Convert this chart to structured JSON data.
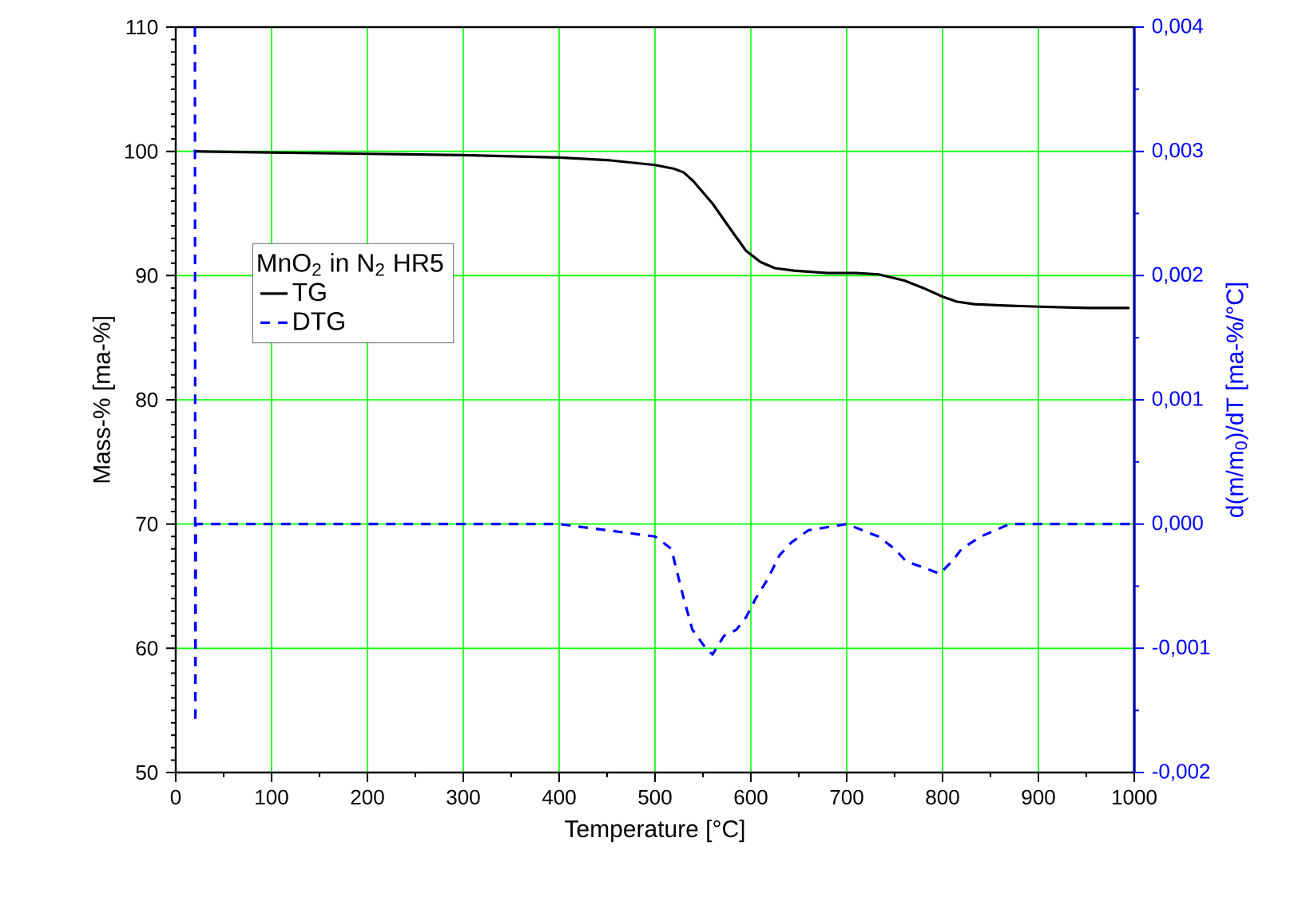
{
  "chart_data": {
    "type": "line",
    "xlabel": "Temperature [°C]",
    "ylabel": "Mass-% [ma-%]",
    "y2label": "d(m/m$_{0}$)/dT [ma-%/°C]",
    "legend_title": "MnO$_{2}$ in N$_{2}$ HR5",
    "xlim": [
      0,
      1000
    ],
    "xticks": [
      0,
      100,
      200,
      300,
      400,
      500,
      600,
      700,
      800,
      900,
      1000
    ],
    "ylim": [
      50,
      110
    ],
    "yticks": [
      50,
      60,
      70,
      80,
      90,
      100,
      110
    ],
    "y2lim": [
      -0.002,
      0.004
    ],
    "y2ticks": [
      {
        "value": -0.002,
        "label": "-0,002"
      },
      {
        "value": -0.001,
        "label": "-0,001"
      },
      {
        "value": 0,
        "label": "0,000"
      },
      {
        "value": 0.001,
        "label": "0,001"
      },
      {
        "value": 0.002,
        "label": "0,002"
      },
      {
        "value": 0.003,
        "label": "0,003"
      },
      {
        "value": 0.004,
        "label": "0,004"
      }
    ],
    "grid": true,
    "legend": "top left",
    "series": [
      {
        "name": "TG",
        "color": "#000000",
        "line_style": "solid",
        "x": [
          20,
          100,
          200,
          300,
          400,
          450,
          500,
          520,
          530,
          540,
          560,
          580,
          595,
          610,
          625,
          645,
          680,
          710,
          733,
          760,
          780,
          800,
          815,
          833,
          860,
          900,
          950,
          995
        ],
        "values": [
          100,
          99.9,
          99.8,
          99.7,
          99.5,
          99.3,
          98.9,
          98.6,
          98.3,
          97.6,
          95.8,
          93.6,
          92.0,
          91.1,
          90.6,
          90.4,
          90.2,
          90.2,
          90.1,
          89.6,
          89.0,
          88.3,
          87.9,
          87.7,
          87.6,
          87.5,
          87.4,
          87.4
        ]
      },
      {
        "name": "DTG",
        "color": "#0000ff",
        "line_style": "dashed",
        "axis": "y2",
        "x": [
          20,
          20.5,
          21,
          60,
          100,
          200,
          300,
          400,
          450,
          500,
          517,
          530,
          539,
          553,
          560,
          572,
          585,
          595,
          605,
          617,
          630,
          642,
          660,
          700,
          733,
          750,
          762,
          780,
          797,
          810,
          820,
          840,
          870,
          900,
          950,
          1000
        ],
        "values": [
          0.004,
          -0.0016,
          0,
          0,
          0,
          0,
          0,
          0,
          -5e-05,
          -0.0001,
          -0.0002,
          -0.0006,
          -0.00085,
          -0.001,
          -0.00105,
          -0.0009,
          -0.00085,
          -0.00075,
          -0.0006,
          -0.00045,
          -0.00025,
          -0.00015,
          -5e-05,
          0,
          -0.0001,
          -0.0002,
          -0.0003,
          -0.00035,
          -0.0004,
          -0.0003,
          -0.0002,
          -0.0001,
          0,
          0,
          0,
          0
        ]
      }
    ]
  }
}
